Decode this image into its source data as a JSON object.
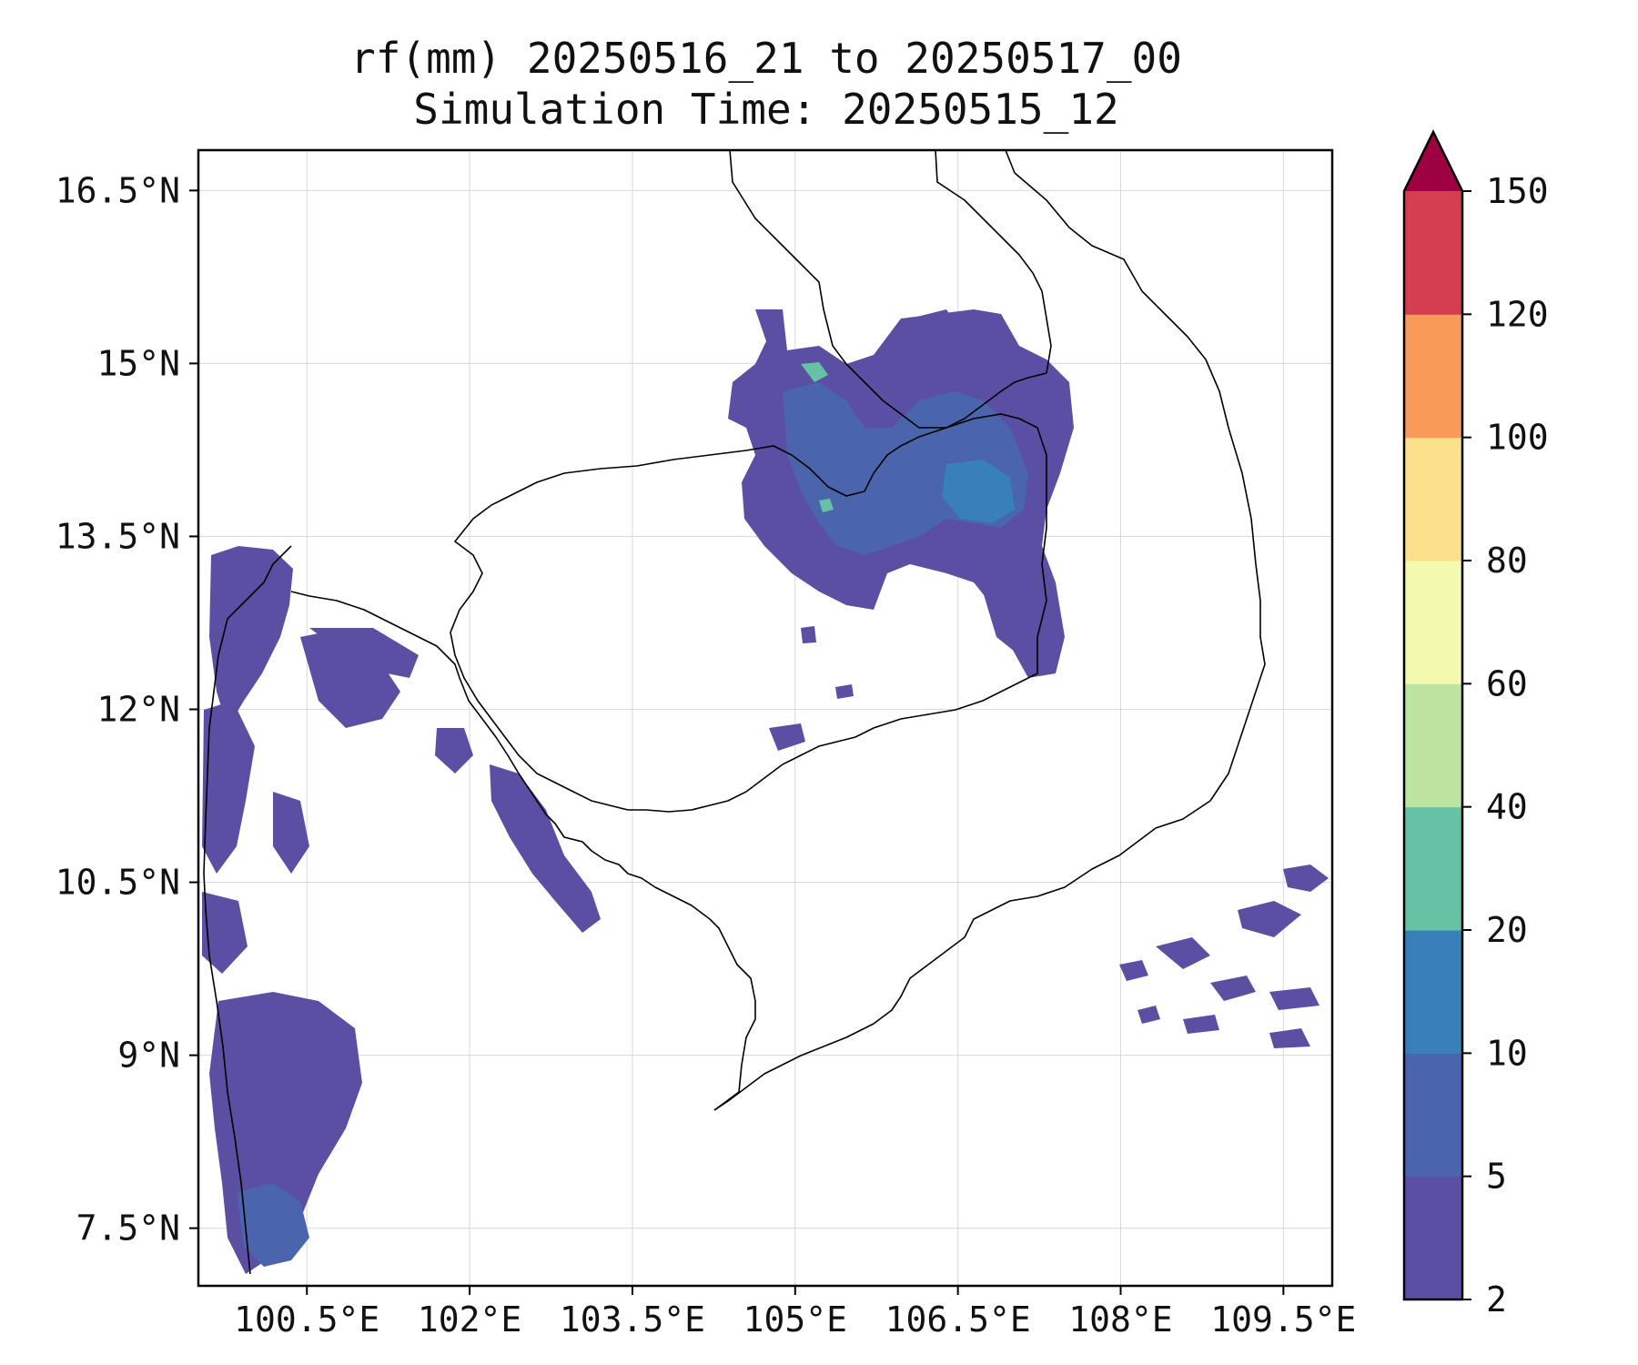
{
  "title_line1": "rf(mm) 20250516_21 to 20250517_00",
  "title_line2": "Simulation Time: 20250515_12",
  "map": {
    "lon_min": 99.5,
    "lon_max": 109.95,
    "lat_min": 7.0,
    "lat_max": 16.85,
    "x_ticks": [
      {
        "value": 100.5,
        "label": "100.5°E"
      },
      {
        "value": 102.0,
        "label": "102°E"
      },
      {
        "value": 103.5,
        "label": "103.5°E"
      },
      {
        "value": 105.0,
        "label": "105°E"
      },
      {
        "value": 106.5,
        "label": "106.5°E"
      },
      {
        "value": 108.0,
        "label": "108°E"
      },
      {
        "value": 109.5,
        "label": "109.5°E"
      }
    ],
    "y_ticks": [
      {
        "value": 16.5,
        "label": "16.5°N"
      },
      {
        "value": 15.0,
        "label": "15°N"
      },
      {
        "value": 13.5,
        "label": "13.5°N"
      },
      {
        "value": 12.0,
        "label": "12°N"
      },
      {
        "value": 10.5,
        "label": "10.5°N"
      },
      {
        "value": 9.0,
        "label": "9°N"
      },
      {
        "value": 7.5,
        "label": "7.5°N"
      }
    ],
    "gridlines": true
  },
  "colorbar": {
    "levels": [
      2,
      5,
      10,
      20,
      40,
      60,
      80,
      100,
      120,
      150
    ],
    "labels": [
      "2",
      "5",
      "10",
      "20",
      "40",
      "60",
      "80",
      "100",
      "120",
      "150"
    ],
    "colors": [
      "#5a4fa2",
      "#4b65ad",
      "#3880ba",
      "#66c2a5",
      "#bde3a0",
      "#f3f9ae",
      "#fde08b",
      "#fa9a58",
      "#d53e4f"
    ],
    "extend_color": "#9e0142",
    "extend": "max"
  },
  "colors": {
    "rain_light": "#5a4fa2",
    "rain_mid": "#4b65ad",
    "rain_heavy": "#3880ba",
    "rain_peak": "#66c2a5"
  }
}
